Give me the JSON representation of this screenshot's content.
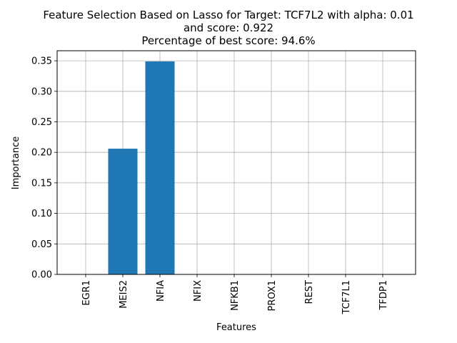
{
  "chart_data": {
    "type": "bar",
    "title_lines": [
      "Feature Selection Based on Lasso for Target: TCF7L2 with alpha: 0.01",
      "and score: 0.922",
      "Percentage of best score: 94.6%"
    ],
    "xlabel": "Features",
    "ylabel": "Importance",
    "categories": [
      "EGR1",
      "MEIS2",
      "NFIA",
      "NFIX",
      "NFKB1",
      "PROX1",
      "REST",
      "TCF7L1",
      "TFDP1"
    ],
    "values": [
      0,
      0.206,
      0.349,
      0,
      0,
      0,
      0,
      0,
      0
    ],
    "ylim": [
      0,
      0.3665
    ],
    "yticks": [
      "0.00",
      "0.05",
      "0.10",
      "0.15",
      "0.20",
      "0.25",
      "0.30",
      "0.35"
    ],
    "grid": true,
    "bar_color": "#1f77b4"
  }
}
